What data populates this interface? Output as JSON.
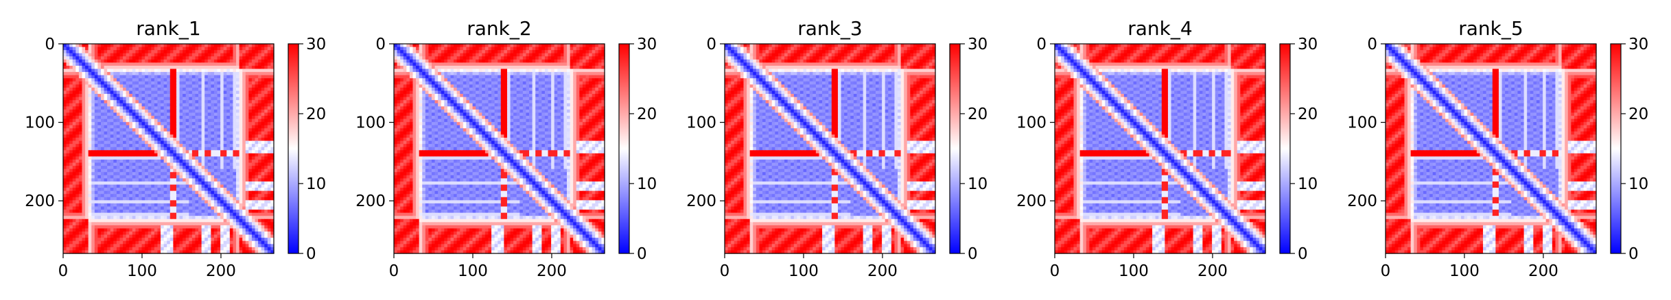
{
  "figure": {
    "background": "#ffffff"
  },
  "chart_data": [
    {
      "type": "heatmap",
      "title": "rank_1",
      "xlim": [
        0,
        267
      ],
      "ylim": [
        267,
        0
      ],
      "xticks": [
        0,
        100,
        200
      ],
      "yticks": [
        0,
        100,
        200
      ],
      "xtick_labels": [
        "0",
        "100",
        "200"
      ],
      "ytick_labels": [
        "0",
        "100",
        "200"
      ],
      "colorbar": {
        "range": [
          0,
          30
        ],
        "ticks": [
          0,
          10,
          20,
          30
        ],
        "tick_labels": [
          "0",
          "10",
          "20",
          "30"
        ],
        "colormap": "bwr",
        "colors": [
          "#0000ff",
          "#ffffff",
          "#ff0000"
        ]
      },
      "grid": false
    },
    {
      "type": "heatmap",
      "title": "rank_2",
      "xlim": [
        0,
        267
      ],
      "ylim": [
        267,
        0
      ],
      "xticks": [
        0,
        100,
        200
      ],
      "yticks": [
        0,
        100,
        200
      ],
      "xtick_labels": [
        "0",
        "100",
        "200"
      ],
      "ytick_labels": [
        "0",
        "100",
        "200"
      ],
      "colorbar": {
        "range": [
          0,
          30
        ],
        "ticks": [
          0,
          10,
          20,
          30
        ],
        "tick_labels": [
          "0",
          "10",
          "20",
          "30"
        ],
        "colormap": "bwr",
        "colors": [
          "#0000ff",
          "#ffffff",
          "#ff0000"
        ]
      },
      "grid": false
    },
    {
      "type": "heatmap",
      "title": "rank_3",
      "xlim": [
        0,
        267
      ],
      "ylim": [
        267,
        0
      ],
      "xticks": [
        0,
        100,
        200
      ],
      "yticks": [
        0,
        100,
        200
      ],
      "xtick_labels": [
        "0",
        "100",
        "200"
      ],
      "ytick_labels": [
        "0",
        "100",
        "200"
      ],
      "colorbar": {
        "range": [
          0,
          30
        ],
        "ticks": [
          0,
          10,
          20,
          30
        ],
        "tick_labels": [
          "0",
          "10",
          "20",
          "30"
        ],
        "colormap": "bwr",
        "colors": [
          "#0000ff",
          "#ffffff",
          "#ff0000"
        ]
      },
      "grid": false
    },
    {
      "type": "heatmap",
      "title": "rank_4",
      "xlim": [
        0,
        267
      ],
      "ylim": [
        267,
        0
      ],
      "xticks": [
        0,
        100,
        200
      ],
      "yticks": [
        0,
        100,
        200
      ],
      "xtick_labels": [
        "0",
        "100",
        "200"
      ],
      "ytick_labels": [
        "0",
        "100",
        "200"
      ],
      "colorbar": {
        "range": [
          0,
          30
        ],
        "ticks": [
          0,
          10,
          20,
          30
        ],
        "tick_labels": [
          "0",
          "10",
          "20",
          "30"
        ],
        "colormap": "bwr",
        "colors": [
          "#0000ff",
          "#ffffff",
          "#ff0000"
        ]
      },
      "grid": false
    },
    {
      "type": "heatmap",
      "title": "rank_5",
      "xlim": [
        0,
        267
      ],
      "ylim": [
        267,
        0
      ],
      "xticks": [
        0,
        100,
        200
      ],
      "yticks": [
        0,
        100,
        200
      ],
      "xtick_labels": [
        "0",
        "100",
        "200"
      ],
      "ytick_labels": [
        "0",
        "100",
        "200"
      ],
      "colorbar": {
        "range": [
          0,
          30
        ],
        "ticks": [
          0,
          10,
          20,
          30
        ],
        "tick_labels": [
          "0",
          "10",
          "20",
          "30"
        ],
        "colormap": "bwr",
        "colors": [
          "#0000ff",
          "#ffffff",
          "#ff0000"
        ]
      },
      "grid": false
    }
  ]
}
